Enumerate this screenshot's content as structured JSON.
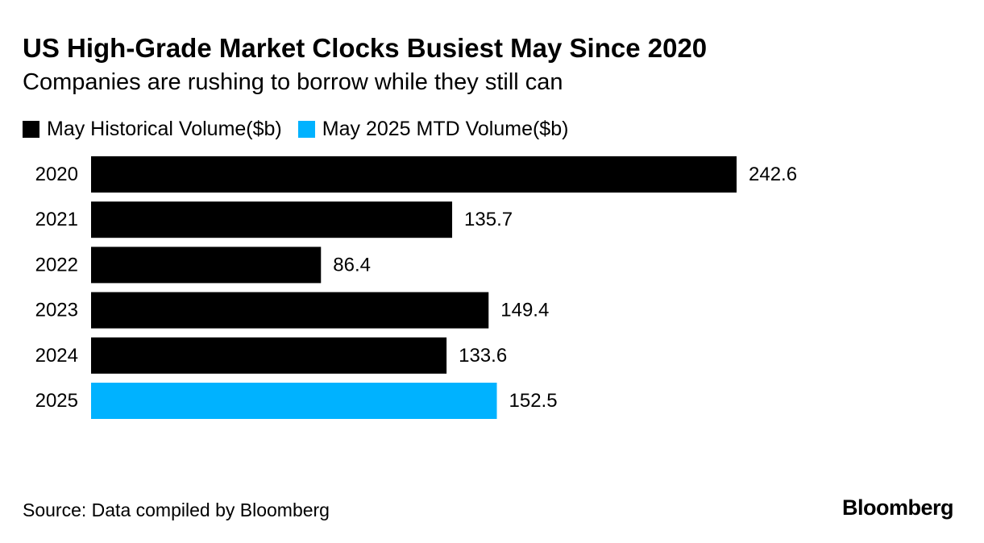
{
  "header": {
    "title": "US High-Grade Market Clocks Busiest May Since 2020",
    "subtitle": "Companies are rushing to borrow while they still can"
  },
  "legend": [
    {
      "label": "May Historical Volume($b)",
      "color": "#000000"
    },
    {
      "label": "May 2025 MTD Volume($b)",
      "color": "#00b2ff"
    }
  ],
  "chart_data": {
    "type": "bar",
    "orientation": "horizontal",
    "categories": [
      "2020",
      "2021",
      "2022",
      "2023",
      "2024",
      "2025"
    ],
    "series": [
      {
        "name": "May Historical Volume($b)",
        "values": [
          242.6,
          135.7,
          86.4,
          149.4,
          133.6,
          null
        ],
        "color": "#000000"
      },
      {
        "name": "May 2025 MTD Volume($b)",
        "values": [
          null,
          null,
          null,
          null,
          null,
          152.5
        ],
        "color": "#00b2ff"
      }
    ],
    "data_labels": [
      "242.6",
      "135.7",
      "86.4",
      "149.4",
      "133.6",
      "152.5"
    ],
    "title": "US High-Grade Market Clocks Busiest May Since 2020",
    "subtitle": "Companies are rushing to borrow while they still can",
    "xlabel": "",
    "ylabel": "",
    "xlim": [
      0,
      242.6
    ],
    "grid": false,
    "legend_position": "top-left"
  },
  "footer": {
    "source": "Source: Data compiled by Bloomberg",
    "brand": "Bloomberg"
  }
}
